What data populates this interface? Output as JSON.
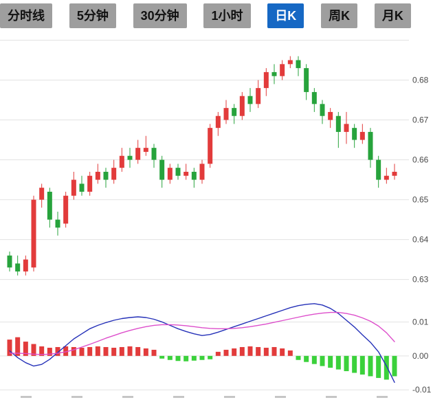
{
  "tabs": [
    {
      "label": "分时线",
      "active": false
    },
    {
      "label": "5分钟",
      "active": false
    },
    {
      "label": "30分钟",
      "active": false
    },
    {
      "label": "1小时",
      "active": false
    },
    {
      "label": "日K",
      "active": true
    },
    {
      "label": "周K",
      "active": false
    },
    {
      "label": "月K",
      "active": false
    }
  ],
  "colors": {
    "up": "#e23b3b",
    "down": "#27a33c",
    "hist_up": "#e23b3b",
    "hist_down": "#3bd13b",
    "dif_line": "#2430b8",
    "dea_line": "#dd4ecb",
    "grid": "#e2e2e2",
    "axis_text": "#4a4a4a",
    "xtick_mark": "#c6c6c6",
    "tab_bg": "#9e9e9e",
    "tab_text": "#111111",
    "tab_active_bg": "#1668c4",
    "tab_active_text": "#ffffff"
  },
  "chart_data": [
    {
      "type": "candlestick",
      "title": "",
      "xlabel": "",
      "ylabel": "",
      "grid": true,
      "legend": "none",
      "ylim": [
        0.627,
        0.6925
      ],
      "yticks": [
        0.69,
        0.68,
        0.67,
        0.66,
        0.65,
        0.64,
        0.63
      ],
      "ytick_labels": [
        "",
        "0.68",
        "0.67",
        "0.66",
        "0.65",
        "0.64",
        "0.63"
      ],
      "candles": [
        [
          0.636,
          0.637,
          0.632,
          0.633
        ],
        [
          0.634,
          0.636,
          0.631,
          0.632
        ],
        [
          0.632,
          0.636,
          0.631,
          0.635
        ],
        [
          0.633,
          0.651,
          0.632,
          0.65
        ],
        [
          0.65,
          0.654,
          0.648,
          0.653
        ],
        [
          0.652,
          0.653,
          0.643,
          0.645
        ],
        [
          0.645,
          0.647,
          0.641,
          0.643
        ],
        [
          0.644,
          0.652,
          0.643,
          0.651
        ],
        [
          0.651,
          0.657,
          0.65,
          0.655
        ],
        [
          0.654,
          0.656,
          0.651,
          0.652
        ],
        [
          0.652,
          0.657,
          0.651,
          0.656
        ],
        [
          0.655,
          0.659,
          0.654,
          0.657
        ],
        [
          0.657,
          0.658,
          0.653,
          0.655
        ],
        [
          0.655,
          0.66,
          0.654,
          0.658
        ],
        [
          0.658,
          0.663,
          0.657,
          0.661
        ],
        [
          0.661,
          0.663,
          0.658,
          0.66
        ],
        [
          0.66,
          0.665,
          0.659,
          0.663
        ],
        [
          0.662,
          0.666,
          0.661,
          0.663
        ],
        [
          0.663,
          0.664,
          0.658,
          0.66
        ],
        [
          0.66,
          0.661,
          0.653,
          0.655
        ],
        [
          0.655,
          0.659,
          0.654,
          0.658
        ],
        [
          0.658,
          0.659,
          0.655,
          0.656
        ],
        [
          0.656,
          0.659,
          0.655,
          0.657
        ],
        [
          0.657,
          0.658,
          0.653,
          0.655
        ],
        [
          0.655,
          0.66,
          0.654,
          0.659
        ],
        [
          0.659,
          0.669,
          0.658,
          0.668
        ],
        [
          0.668,
          0.672,
          0.666,
          0.671
        ],
        [
          0.67,
          0.675,
          0.669,
          0.673
        ],
        [
          0.673,
          0.674,
          0.669,
          0.671
        ],
        [
          0.671,
          0.677,
          0.67,
          0.676
        ],
        [
          0.676,
          0.678,
          0.672,
          0.674
        ],
        [
          0.674,
          0.68,
          0.673,
          0.678
        ],
        [
          0.678,
          0.683,
          0.676,
          0.682
        ],
        [
          0.682,
          0.684,
          0.679,
          0.681
        ],
        [
          0.681,
          0.685,
          0.68,
          0.684
        ],
        [
          0.684,
          0.686,
          0.683,
          0.685
        ],
        [
          0.685,
          0.686,
          0.681,
          0.683
        ],
        [
          0.683,
          0.684,
          0.675,
          0.677
        ],
        [
          0.677,
          0.678,
          0.672,
          0.674
        ],
        [
          0.674,
          0.675,
          0.669,
          0.671
        ],
        [
          0.67,
          0.673,
          0.668,
          0.672
        ],
        [
          0.671,
          0.672,
          0.663,
          0.667
        ],
        [
          0.667,
          0.672,
          0.664,
          0.669
        ],
        [
          0.668,
          0.669,
          0.663,
          0.665
        ],
        [
          0.665,
          0.669,
          0.664,
          0.667
        ],
        [
          0.667,
          0.668,
          0.658,
          0.66
        ],
        [
          0.66,
          0.661,
          0.653,
          0.655
        ],
        [
          0.655,
          0.658,
          0.654,
          0.656
        ],
        [
          0.656,
          0.659,
          0.655,
          0.657
        ]
      ]
    },
    {
      "type": "macd (bar + line)",
      "title": "",
      "grid": true,
      "ylim": [
        -0.013,
        0.019
      ],
      "yticks": [
        0.01,
        0.0,
        -0.01
      ],
      "ytick_labels": [
        "0.01",
        "0.00",
        "-0.01"
      ],
      "x_tick_marks": 8,
      "histogram": [
        0.0048,
        0.0055,
        0.0042,
        0.0035,
        0.0028,
        0.0024,
        0.0026,
        0.0028,
        0.0026,
        0.0024,
        0.0026,
        0.0028,
        0.0026,
        0.0024,
        0.0026,
        0.0028,
        0.0026,
        0.0022,
        0.0018,
        -0.0008,
        -0.0012,
        -0.0015,
        -0.0016,
        -0.0014,
        -0.0012,
        -0.001,
        0.0012,
        0.0018,
        0.0022,
        0.0026,
        0.0028,
        0.0026,
        0.0024,
        0.0026,
        0.0022,
        0.0016,
        -0.0012,
        -0.0018,
        -0.0024,
        -0.003,
        -0.0035,
        -0.004,
        -0.0045,
        -0.005,
        -0.0055,
        -0.006,
        -0.0065,
        -0.007,
        -0.006
      ],
      "series": [
        {
          "name": "DIF",
          "color_key": "dif_line",
          "values": [
            0.0015,
            -0.0005,
            -0.002,
            -0.003,
            -0.0025,
            -0.001,
            0.001,
            0.003,
            0.005,
            0.0065,
            0.008,
            0.009,
            0.0098,
            0.0105,
            0.011,
            0.0113,
            0.0115,
            0.0113,
            0.0108,
            0.01,
            0.009,
            0.008,
            0.0072,
            0.0065,
            0.006,
            0.0063,
            0.007,
            0.0078,
            0.0086,
            0.0094,
            0.0102,
            0.011,
            0.0118,
            0.0126,
            0.0134,
            0.0142,
            0.0148,
            0.0152,
            0.0154,
            0.015,
            0.014,
            0.0125,
            0.0105,
            0.0085,
            0.0062,
            0.004,
            0.0012,
            -0.003,
            -0.0078
          ]
        },
        {
          "name": "DEA",
          "color_key": "dea_line",
          "values": [
            0.0008,
            0.0008,
            0.0007,
            0.0005,
            0.0004,
            0.0005,
            0.0008,
            0.0012,
            0.0018,
            0.0026,
            0.0034,
            0.0043,
            0.0052,
            0.006,
            0.0068,
            0.0075,
            0.0081,
            0.0086,
            0.009,
            0.0092,
            0.0092,
            0.0091,
            0.0089,
            0.0086,
            0.0083,
            0.0081,
            0.008,
            0.008,
            0.0081,
            0.0083,
            0.0086,
            0.009,
            0.0094,
            0.0099,
            0.0104,
            0.0109,
            0.0114,
            0.0119,
            0.0123,
            0.0126,
            0.0128,
            0.0128,
            0.0125,
            0.012,
            0.0112,
            0.0102,
            0.0088,
            0.0068,
            0.0042
          ]
        }
      ]
    }
  ]
}
